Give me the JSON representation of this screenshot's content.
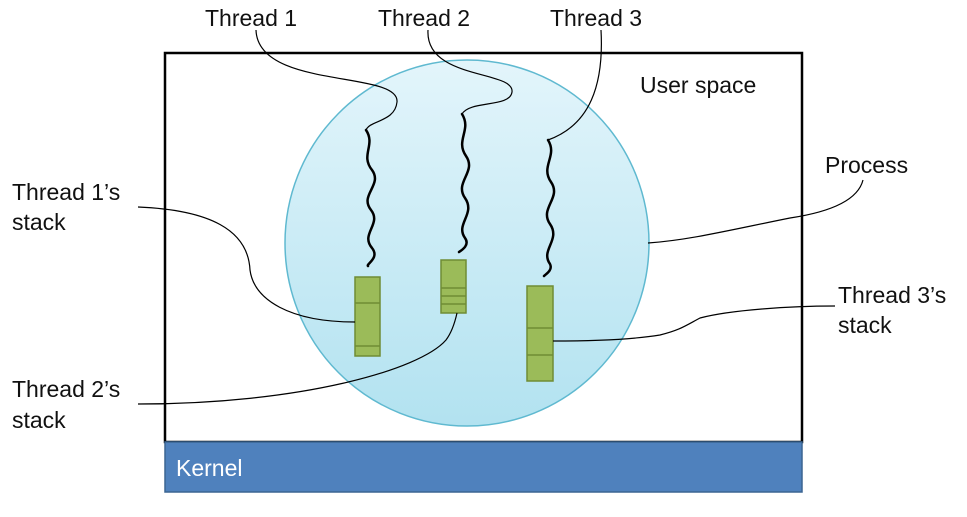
{
  "threads": [
    {
      "label": "Thread 1"
    },
    {
      "label": "Thread 2"
    },
    {
      "label": "Thread 3"
    }
  ],
  "regions": {
    "user_space": "User space",
    "kernel": "Kernel",
    "process": "Process"
  },
  "stacks": [
    {
      "line1": "Thread 1’s",
      "line2": "stack"
    },
    {
      "line1": "Thread 2’s",
      "line2": "stack"
    },
    {
      "line1": "Thread 3’s",
      "line2": "stack"
    }
  ],
  "colors": {
    "process_fill_top": "#dff4fb",
    "process_fill_bottom": "#b4e3f1",
    "process_stroke": "#5fb9d0",
    "stack_fill": "#9bbb59",
    "stack_stroke": "#6f8c34",
    "kernel_fill": "#4f81bd",
    "kernel_stroke": "#3b6592"
  }
}
